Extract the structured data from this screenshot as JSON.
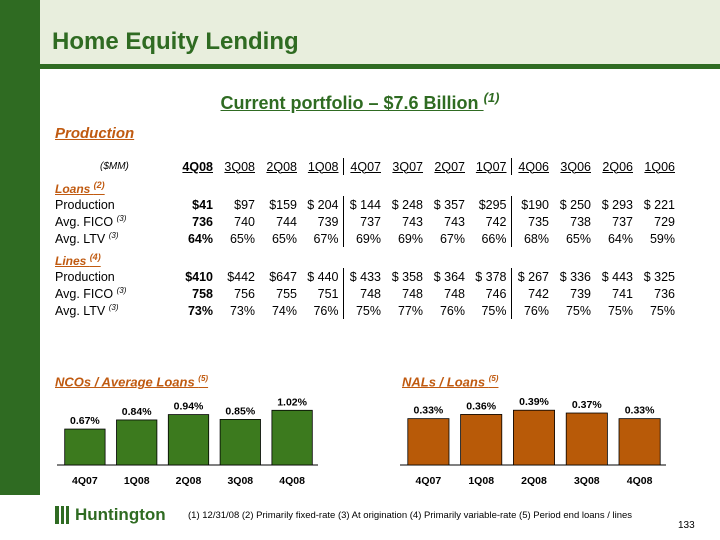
{
  "title": "Home Equity Lending",
  "subtitle": {
    "text": "Current portfolio – $7.6 Billion ",
    "note": "(1)"
  },
  "production_label": "Production",
  "table": {
    "units": "($MM)",
    "columns": [
      "4Q08",
      "3Q08",
      "2Q08",
      "1Q08",
      "4Q07",
      "3Q07",
      "2Q07",
      "1Q07",
      "4Q06",
      "3Q06",
      "2Q06",
      "1Q06"
    ],
    "loans": {
      "label": "Loans ",
      "note": "(2)",
      "rows": [
        {
          "label": "Production",
          "note": "",
          "values": [
            "$41",
            "$97",
            "$159",
            "$  204",
            "$  144",
            "$  248",
            "$  357",
            "$295",
            "$190",
            "$  250",
            "$  293",
            "$  221"
          ]
        },
        {
          "label": "Avg. FICO ",
          "note": "(3)",
          "values": [
            "736",
            "740",
            "744",
            "739",
            "737",
            "743",
            "743",
            "742",
            "735",
            "738",
            "737",
            "729"
          ]
        },
        {
          "label": "Avg. LTV ",
          "note": "(3)",
          "values": [
            "64%",
            "65%",
            "65%",
            "67%",
            "69%",
            "69%",
            "67%",
            "66%",
            "68%",
            "65%",
            "64%",
            "59%"
          ]
        }
      ]
    },
    "lines": {
      "label": "Lines ",
      "note": "(4)",
      "rows": [
        {
          "label": "Production",
          "note": "",
          "values": [
            "$410",
            "$442",
            "$647",
            "$  440",
            "$  433",
            "$  358",
            "$  364",
            "$  378",
            "$  267",
            "$  336",
            "$  443",
            "$ 325"
          ]
        },
        {
          "label": "Avg. FICO ",
          "note": "(3)",
          "values": [
            "758",
            "756",
            "755",
            "751",
            "748",
            "748",
            "748",
            "746",
            "742",
            "739",
            "741",
            "736"
          ]
        },
        {
          "label": "Avg. LTV ",
          "note": "(3)",
          "values": [
            "73%",
            "73%",
            "74%",
            "76%",
            "75%",
            "77%",
            "76%",
            "75%",
            "76%",
            "75%",
            "75%",
            "75%"
          ]
        }
      ]
    }
  },
  "nco_title": {
    "text": "NCOs / Average Loans ",
    "note": "(5)"
  },
  "nal_title": {
    "text": "NALs / Loans ",
    "note": "(5)"
  },
  "chart_data": [
    {
      "type": "bar",
      "categories": [
        "4Q07",
        "1Q08",
        "2Q08",
        "3Q08",
        "4Q08"
      ],
      "values": [
        0.67,
        0.84,
        0.94,
        0.85,
        1.02
      ],
      "labels": [
        "0.67%",
        "0.84%",
        "0.94%",
        "0.85%",
        "1.02%"
      ],
      "color": "#3c7a1e",
      "ylim": [
        0,
        1.1
      ]
    },
    {
      "type": "bar",
      "categories": [
        "4Q07",
        "1Q08",
        "2Q08",
        "3Q08",
        "4Q08"
      ],
      "values": [
        0.33,
        0.36,
        0.39,
        0.37,
        0.33
      ],
      "labels": [
        "0.33%",
        "0.36%",
        "0.39%",
        "0.37%",
        "0.33%"
      ],
      "color": "#b85a08",
      "ylim": [
        0,
        0.42
      ]
    }
  ],
  "logo_text": "Huntington",
  "footnotes": "(1) 12/31/08   (2)  Primarily fixed-rate   (3)  At origination   (4)  Primarily variable-rate   (5)  Period end loans / lines",
  "page_number": "133"
}
